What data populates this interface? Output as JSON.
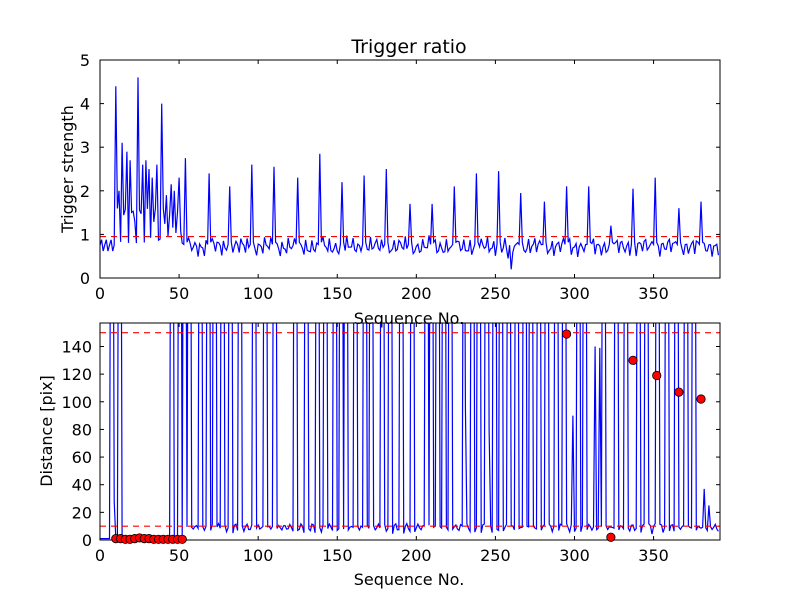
{
  "chart_data": [
    {
      "type": "line",
      "title": "Trigger ratio",
      "xlabel": "Sequence No.",
      "ylabel": "Trigger strength",
      "xlim": [
        0,
        392
      ],
      "ylim": [
        0,
        5
      ],
      "xticks": [
        0,
        50,
        100,
        150,
        200,
        250,
        300,
        350
      ],
      "yticks": [
        0,
        1,
        2,
        3,
        4,
        5
      ],
      "grid": false,
      "line_color": "#0000ff",
      "threshold": {
        "value": 0.95,
        "color": "#ff0000",
        "style": "dashed"
      },
      "baseline": 0.72,
      "peaks": [
        [
          10,
          4.4
        ],
        [
          12,
          2.0
        ],
        [
          14,
          3.1
        ],
        [
          17,
          2.9
        ],
        [
          19,
          2.7
        ],
        [
          22,
          1.3
        ],
        [
          24,
          4.6
        ],
        [
          27,
          2.6
        ],
        [
          29,
          2.7
        ],
        [
          31,
          2.5
        ],
        [
          33,
          2.3
        ],
        [
          36,
          2.6
        ],
        [
          39,
          4.0
        ],
        [
          42,
          1.9
        ],
        [
          45,
          2.15
        ],
        [
          47,
          2.0
        ],
        [
          50,
          2.3
        ],
        [
          54,
          2.75
        ],
        [
          69,
          2.4
        ],
        [
          82,
          2.1
        ],
        [
          96,
          2.6
        ],
        [
          110,
          2.55
        ],
        [
          125,
          2.3
        ],
        [
          139,
          2.85
        ],
        [
          153,
          2.2
        ],
        [
          167,
          2.35
        ],
        [
          181,
          2.5
        ],
        [
          196,
          1.7
        ],
        [
          210,
          1.7
        ],
        [
          224,
          2.1
        ],
        [
          238,
          2.4
        ],
        [
          252,
          2.45
        ],
        [
          266,
          1.95
        ],
        [
          281,
          1.75
        ],
        [
          295,
          2.1
        ],
        [
          309,
          2.1
        ],
        [
          323,
          1.2
        ],
        [
          337,
          2.05
        ],
        [
          351,
          2.3
        ],
        [
          366,
          1.6
        ],
        [
          380,
          1.75
        ]
      ],
      "dips": [
        [
          260,
          0.2
        ],
        [
          258,
          0.45
        ]
      ]
    },
    {
      "type": "line",
      "xlabel": "Sequence No.",
      "ylabel": "Distance [pix]",
      "xlim": [
        0,
        392
      ],
      "ylim": [
        0,
        157
      ],
      "xticks": [
        0,
        50,
        100,
        150,
        200,
        250,
        300,
        350
      ],
      "yticks": [
        0,
        20,
        40,
        60,
        80,
        100,
        120,
        140
      ],
      "grid": false,
      "line_color": "#0000ff",
      "thresholds": [
        {
          "value": 150,
          "color": "#ff0000",
          "style": "dashed"
        },
        {
          "value": 10,
          "color": "#ff0000",
          "style": "dashed"
        }
      ],
      "spikes_x": [
        7,
        12,
        45,
        50,
        53,
        56,
        63,
        68,
        72,
        77,
        82,
        88,
        97,
        104,
        110,
        123,
        130,
        137,
        142,
        148,
        152,
        155,
        161,
        167,
        171,
        178,
        183,
        190,
        197,
        206,
        209,
        213,
        217,
        221,
        230,
        235,
        239,
        244,
        249,
        253,
        258,
        263,
        268,
        272,
        277,
        282,
        288,
        293,
        302,
        306,
        318,
        326,
        332,
        340,
        345,
        352,
        358,
        364,
        370,
        375
      ],
      "partial_spikes": [
        [
          9,
          28
        ],
        [
          231,
          97
        ],
        [
          246,
          80
        ],
        [
          299,
          90
        ],
        [
          313,
          140
        ],
        [
          316,
          139
        ],
        [
          382,
          37
        ],
        [
          385,
          25
        ]
      ],
      "markers": {
        "color": "#ff0000",
        "points": [
          [
            10,
            1
          ],
          [
            13,
            1
          ],
          [
            16,
            0.5
          ],
          [
            19,
            0.5
          ],
          [
            22,
            1
          ],
          [
            25,
            1.5
          ],
          [
            28,
            1
          ],
          [
            31,
            1
          ],
          [
            34,
            0.5
          ],
          [
            37,
            0.5
          ],
          [
            40,
            0.5
          ],
          [
            43,
            0.5
          ],
          [
            46,
            0.5
          ],
          [
            49,
            0.5
          ],
          [
            52,
            0.5
          ],
          [
            295,
            149
          ],
          [
            323,
            2
          ],
          [
            337,
            130
          ],
          [
            352,
            119
          ],
          [
            366,
            107
          ],
          [
            380,
            102
          ]
        ]
      }
    }
  ]
}
